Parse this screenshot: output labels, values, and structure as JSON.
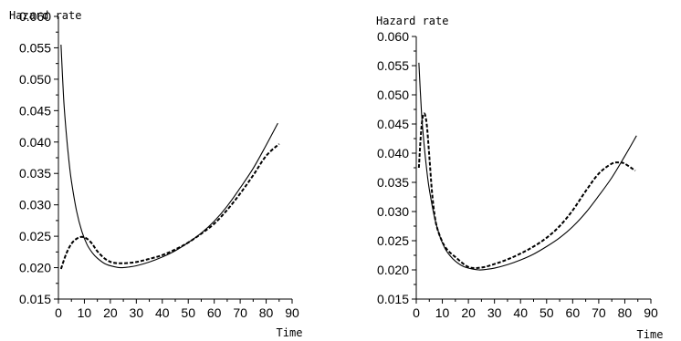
{
  "chart_data": [
    {
      "type": "line",
      "ylabel": "Hazard rate",
      "xlabel": "Time",
      "xlim": [
        0,
        90
      ],
      "ylim": [
        0.015,
        0.06
      ],
      "xticks": [
        "0",
        "10",
        "20",
        "30",
        "40",
        "50",
        "60",
        "70",
        "80",
        "90"
      ],
      "yticks": [
        "0.015",
        "0.020",
        "0.025",
        "0.030",
        "0.035",
        "0.040",
        "0.045",
        "0.050",
        "0.055",
        "0.060"
      ],
      "grid": false,
      "series": [
        {
          "style": "solid",
          "x": [
            1,
            2,
            3,
            4,
            5,
            7,
            9,
            11,
            13,
            15,
            18,
            21,
            24,
            27,
            30,
            35,
            40,
            45,
            50,
            55,
            60,
            65,
            70,
            75,
            80,
            84.5
          ],
          "y": [
            0.0555,
            0.047,
            0.0415,
            0.0372,
            0.0338,
            0.029,
            0.0258,
            0.0237,
            0.0224,
            0.0215,
            0.0206,
            0.0202,
            0.02,
            0.0201,
            0.0203,
            0.0209,
            0.0217,
            0.0227,
            0.024,
            0.0255,
            0.0274,
            0.0298,
            0.0327,
            0.0358,
            0.0395,
            0.043
          ]
        },
        {
          "style": "dashed",
          "x": [
            1,
            3,
            5,
            7,
            9,
            11,
            13,
            15,
            18,
            21,
            25,
            30,
            35,
            40,
            45,
            50,
            55,
            60,
            65,
            70,
            75,
            80,
            85
          ],
          "y": [
            0.0198,
            0.0222,
            0.0238,
            0.0246,
            0.0249,
            0.0246,
            0.0238,
            0.0226,
            0.0214,
            0.0208,
            0.0207,
            0.0209,
            0.0214,
            0.022,
            0.0229,
            0.024,
            0.0254,
            0.027,
            0.0292,
            0.0318,
            0.0347,
            0.0378,
            0.0397
          ]
        }
      ]
    },
    {
      "type": "line",
      "ylabel": "Hazard rate",
      "xlabel": "Time",
      "xlim": [
        0,
        90
      ],
      "ylim": [
        0.015,
        0.06
      ],
      "xticks": [
        "0",
        "10",
        "20",
        "30",
        "40",
        "50",
        "60",
        "70",
        "80",
        "90"
      ],
      "yticks": [
        "0.015",
        "0.020",
        "0.025",
        "0.030",
        "0.035",
        "0.040",
        "0.045",
        "0.050",
        "0.055",
        "0.060"
      ],
      "grid": false,
      "series": [
        {
          "style": "solid",
          "x": [
            1,
            2,
            3,
            4,
            5,
            7,
            9,
            11,
            13,
            15,
            18,
            21,
            24,
            27,
            30,
            35,
            40,
            45,
            50,
            55,
            60,
            65,
            70,
            75,
            80,
            84.5
          ],
          "y": [
            0.0555,
            0.047,
            0.0415,
            0.0372,
            0.0338,
            0.029,
            0.0258,
            0.0237,
            0.0224,
            0.0215,
            0.0206,
            0.0202,
            0.02,
            0.0201,
            0.0203,
            0.0209,
            0.0217,
            0.0227,
            0.024,
            0.0255,
            0.0274,
            0.0298,
            0.0327,
            0.0358,
            0.0395,
            0.043
          ]
        },
        {
          "style": "dashed",
          "x": [
            1,
            2,
            3,
            4,
            5,
            6,
            7,
            8,
            10,
            12,
            15,
            20,
            25,
            30,
            35,
            40,
            45,
            50,
            55,
            60,
            65,
            70,
            75,
            78,
            80,
            84
          ],
          "y": [
            0.0375,
            0.0445,
            0.0468,
            0.045,
            0.0395,
            0.0335,
            0.0295,
            0.0272,
            0.0248,
            0.0234,
            0.0222,
            0.0205,
            0.0204,
            0.021,
            0.0218,
            0.0228,
            0.024,
            0.0255,
            0.0275,
            0.0302,
            0.0335,
            0.0365,
            0.0382,
            0.0384,
            0.0382,
            0.037
          ]
        }
      ]
    }
  ]
}
